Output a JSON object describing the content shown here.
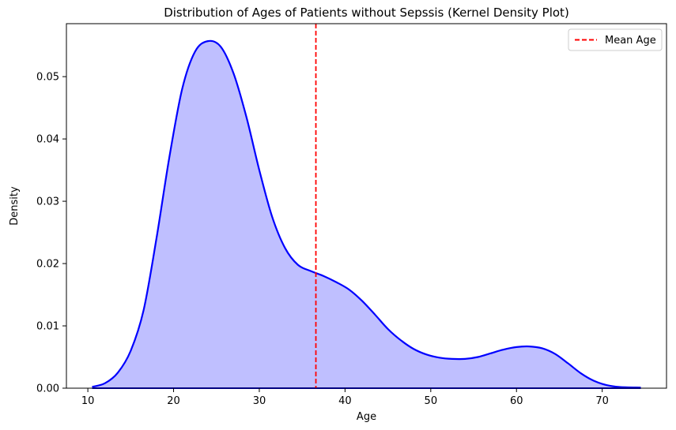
{
  "chart_data": {
    "type": "area",
    "title": "Distribution of Ages of Patients without Sepssis (Kernel Density Plot)",
    "xlabel": "Age",
    "ylabel": "Density",
    "xlim": [
      7.5,
      77.5
    ],
    "ylim": [
      0,
      0.0585
    ],
    "xticks": [
      10,
      20,
      30,
      40,
      50,
      60,
      70
    ],
    "yticks": [
      0.0,
      0.01,
      0.02,
      0.03,
      0.04,
      0.05
    ],
    "ytick_labels": [
      "0.00",
      "0.01",
      "0.02",
      "0.03",
      "0.04",
      "0.05"
    ],
    "grid": false,
    "legend_position": "top-right",
    "series": [
      {
        "style": "fill-and-line",
        "line_color": "#0000ff",
        "fill_color": "#bfbfff",
        "x": [
          10.5,
          12,
          13.5,
          15,
          16.5,
          18,
          19.5,
          21,
          22.5,
          24,
          25.5,
          27,
          28.5,
          30,
          31.5,
          33,
          34.5,
          36,
          37.5,
          39,
          40.5,
          42,
          43.5,
          45,
          46.5,
          48,
          49.5,
          51,
          52.5,
          54,
          55.5,
          57,
          58.5,
          60,
          61.5,
          63,
          64.5,
          66,
          67.5,
          69,
          70.5,
          72,
          74.5
        ],
        "y": [
          0.0002,
          0.0008,
          0.0025,
          0.006,
          0.0125,
          0.024,
          0.037,
          0.048,
          0.054,
          0.0557,
          0.0548,
          0.0505,
          0.0435,
          0.035,
          0.0275,
          0.0225,
          0.0198,
          0.0188,
          0.018,
          0.017,
          0.0158,
          0.014,
          0.0118,
          0.0095,
          0.0077,
          0.0063,
          0.0054,
          0.0049,
          0.0047,
          0.0047,
          0.005,
          0.0056,
          0.0062,
          0.0066,
          0.0067,
          0.0064,
          0.0055,
          0.004,
          0.0024,
          0.0012,
          0.0005,
          0.0002,
          0.0001
        ]
      },
      {
        "name": "Mean Age",
        "style": "vline",
        "color": "#ff0000",
        "x": 36.6
      }
    ]
  }
}
